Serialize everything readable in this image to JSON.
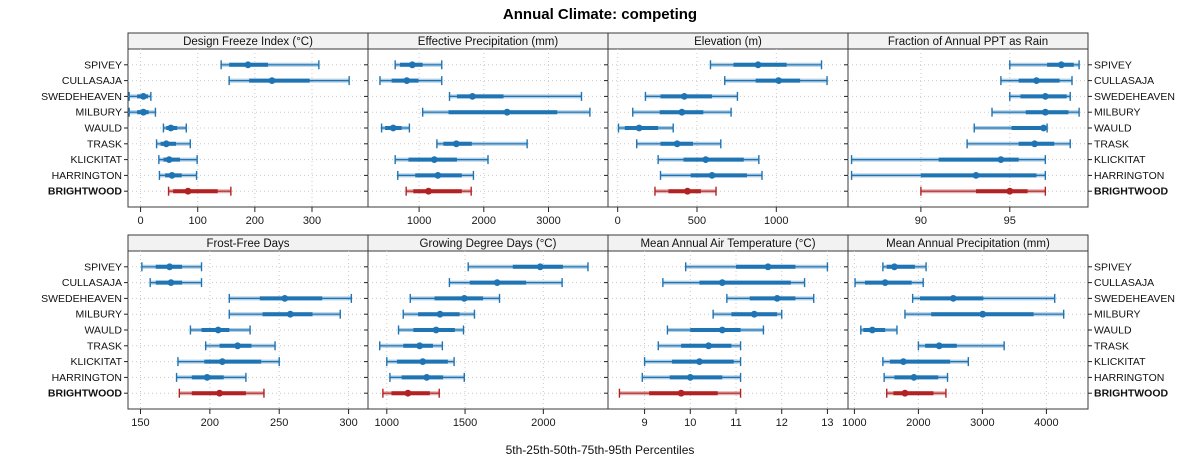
{
  "figure": {
    "title": "Annual Climate: competing",
    "caption": "5th-25th-50th-75th-95th Percentiles"
  },
  "chart_data": {
    "type": "dotplot",
    "title": "Annual Climate: competing",
    "xlabel": "5th-25th-50th-75th-95th Percentiles",
    "percentiles": [
      5,
      25,
      50,
      75,
      95
    ],
    "legend_position": "none",
    "grid": "dotted",
    "sites": [
      "SPIVEY",
      "CULLASAJA",
      "SWEDEHEAVEN",
      "MILBURY",
      "WAULD",
      "TRASK",
      "KLICKITAT",
      "HARRINGTON",
      "BRIGHTWOOD"
    ],
    "highlight_site": "BRIGHTWOOD",
    "colors": {
      "series": "#1f74b4",
      "series_band": "#9dc6e0",
      "highlight": "#b22222",
      "highlight_band": "#dfa3a3",
      "grid": "#c9c9c9",
      "panel_header_bg": "#f2f2f2",
      "border": "#3a3a3a",
      "tick_text": "#1a1a1a"
    },
    "panels": [
      {
        "title": "Design Freeze Index (°C)",
        "row": 0,
        "col": 0,
        "xlim": [
          -22,
          398
        ],
        "ticks": [
          0,
          100,
          200,
          300
        ],
        "values": [
          [
            141,
            155,
            188,
            223,
            312
          ],
          [
            155,
            190,
            230,
            296,
            365
          ],
          [
            -20,
            -6,
            5,
            13,
            18
          ],
          [
            -20,
            -6,
            5,
            14,
            26
          ],
          [
            40,
            45,
            53,
            64,
            80
          ],
          [
            28,
            35,
            45,
            62,
            87
          ],
          [
            32,
            40,
            50,
            69,
            99
          ],
          [
            33,
            43,
            55,
            72,
            98
          ],
          [
            49,
            57,
            83,
            135,
            158
          ]
        ]
      },
      {
        "title": "Effective Precipitation (mm)",
        "row": 0,
        "col": 1,
        "xlim": [
          210,
          3920
        ],
        "ticks": [
          1000,
          2000,
          3000
        ],
        "values": [
          [
            630,
            705,
            895,
            1055,
            1350
          ],
          [
            395,
            575,
            810,
            990,
            1350
          ],
          [
            1470,
            1585,
            1825,
            2305,
            3510
          ],
          [
            1055,
            1455,
            2360,
            3135,
            3640
          ],
          [
            420,
            475,
            600,
            730,
            850
          ],
          [
            1275,
            1375,
            1575,
            1815,
            2670
          ],
          [
            630,
            835,
            1235,
            1585,
            2065
          ],
          [
            670,
            940,
            1290,
            1660,
            1840
          ],
          [
            800,
            910,
            1145,
            1660,
            1805
          ]
        ]
      },
      {
        "title": "Elevation (m)",
        "row": 0,
        "col": 2,
        "xlim": [
          -61,
          1452
        ],
        "ticks": [
          0,
          500,
          1000
        ],
        "values": [
          [
            585,
            730,
            885,
            1065,
            1285
          ],
          [
            675,
            870,
            1015,
            1150,
            1320
          ],
          [
            175,
            270,
            420,
            595,
            755
          ],
          [
            95,
            265,
            405,
            540,
            715
          ],
          [
            5,
            45,
            135,
            255,
            350
          ],
          [
            120,
            270,
            375,
            475,
            650
          ],
          [
            255,
            415,
            555,
            795,
            890
          ],
          [
            270,
            460,
            595,
            815,
            910
          ],
          [
            235,
            320,
            440,
            525,
            620
          ]
        ]
      },
      {
        "title": "Fraction of Annual PPT as Rain",
        "row": 0,
        "col": 3,
        "xlim": [
          85.9,
          99.4
        ],
        "ticks": [
          90,
          95
        ],
        "values": [
          [
            95.0,
            97.1,
            97.9,
            98.6,
            98.9
          ],
          [
            94.5,
            95.5,
            96.5,
            97.8,
            98.5
          ],
          [
            95.0,
            95.6,
            97.0,
            98.2,
            98.4
          ],
          [
            94.0,
            95.9,
            97.0,
            98.3,
            98.9
          ],
          [
            93.0,
            95.1,
            96.9,
            97.0,
            97.1
          ],
          [
            92.6,
            95.5,
            96.4,
            97.5,
            98.4
          ],
          [
            86.1,
            91.0,
            94.5,
            95.5,
            97.0
          ],
          [
            86.1,
            90.0,
            93.1,
            96.5,
            97.0
          ],
          [
            90.0,
            93.1,
            95.0,
            96.0,
            97.0
          ]
        ]
      },
      {
        "title": "Frost-Free Days",
        "row": 1,
        "col": 0,
        "xlim": [
          141,
          314
        ],
        "ticks": [
          150,
          200,
          250,
          300
        ],
        "values": [
          [
            151,
            161,
            171,
            180,
            194
          ],
          [
            157,
            161,
            172,
            180,
            194
          ],
          [
            214,
            236,
            254,
            281,
            302
          ],
          [
            214,
            238,
            258,
            274,
            294
          ],
          [
            186,
            194,
            206,
            214,
            229
          ],
          [
            197,
            207,
            220,
            230,
            247
          ],
          [
            177,
            196,
            209,
            237,
            250
          ],
          [
            176,
            187,
            198,
            210,
            226
          ],
          [
            178,
            187,
            207,
            226,
            239
          ]
        ]
      },
      {
        "title": "Growing Degree Days (°C)",
        "row": 1,
        "col": 1,
        "xlim": [
          880,
          2413
        ],
        "ticks": [
          1000,
          1500,
          2000
        ],
        "values": [
          [
            1520,
            1805,
            1980,
            2125,
            2285
          ],
          [
            1400,
            1530,
            1705,
            1890,
            2120
          ],
          [
            1150,
            1305,
            1495,
            1615,
            1720
          ],
          [
            1105,
            1200,
            1340,
            1465,
            1560
          ],
          [
            1075,
            1170,
            1315,
            1435,
            1490
          ],
          [
            955,
            1105,
            1210,
            1295,
            1355
          ],
          [
            1000,
            1065,
            1230,
            1390,
            1430
          ],
          [
            1020,
            1095,
            1255,
            1360,
            1495
          ],
          [
            975,
            1030,
            1135,
            1275,
            1335
          ]
        ]
      },
      {
        "title": "Mean Annual Air Temperature (°C)",
        "row": 1,
        "col": 2,
        "xlim": [
          8.2,
          13.45
        ],
        "ticks": [
          9,
          10,
          11,
          12,
          13
        ],
        "values": [
          [
            9.9,
            11.0,
            11.7,
            12.3,
            13.0
          ],
          [
            9.4,
            10.2,
            10.7,
            12.2,
            12.5
          ],
          [
            10.8,
            11.3,
            11.9,
            12.3,
            12.7
          ],
          [
            10.5,
            10.9,
            11.4,
            11.9,
            12.0
          ],
          [
            9.5,
            10.0,
            10.7,
            11.1,
            11.6
          ],
          [
            9.3,
            9.8,
            10.4,
            10.9,
            11.1
          ],
          [
            9.0,
            9.6,
            10.2,
            10.95,
            11.1
          ],
          [
            8.95,
            9.55,
            10.0,
            10.7,
            11.1
          ],
          [
            8.45,
            9.1,
            9.8,
            10.6,
            11.1
          ]
        ]
      },
      {
        "title": "Mean Annual Precipitation (mm)",
        "row": 1,
        "col": 3,
        "xlim": [
          900,
          4650
        ],
        "ticks": [
          1000,
          2000,
          3000,
          4000
        ],
        "values": [
          [
            1445,
            1505,
            1625,
            1945,
            2120
          ],
          [
            1010,
            1165,
            1480,
            1895,
            2075
          ],
          [
            1910,
            2025,
            2545,
            3015,
            4130
          ],
          [
            1790,
            2200,
            3005,
            3800,
            4270
          ],
          [
            1100,
            1140,
            1280,
            1480,
            1665
          ],
          [
            2000,
            2105,
            2325,
            2600,
            3340
          ],
          [
            1445,
            1555,
            1765,
            2495,
            2780
          ],
          [
            1465,
            1625,
            1930,
            2310,
            2455
          ],
          [
            1505,
            1610,
            1790,
            2235,
            2430
          ]
        ]
      }
    ]
  }
}
